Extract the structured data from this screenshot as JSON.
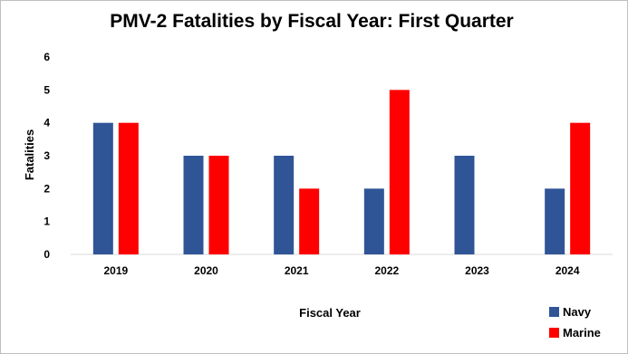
{
  "chart_data": {
    "type": "bar",
    "title": "PMV-2 Fatalities by Fiscal Year: First Quarter",
    "xlabel": "Fiscal Year",
    "ylabel": "Fatalities",
    "categories": [
      "2019",
      "2020",
      "2021",
      "2022",
      "2023",
      "2024"
    ],
    "series": [
      {
        "name": "Navy",
        "values": [
          4,
          3,
          3,
          2,
          3,
          2
        ],
        "color": "#2f5597"
      },
      {
        "name": "Marine",
        "values": [
          4,
          3,
          2,
          5,
          0,
          4
        ],
        "color": "#ff0000"
      }
    ],
    "ylim": [
      0,
      6
    ],
    "yticks": [
      "0",
      "1",
      "2",
      "3",
      "4",
      "5",
      "6"
    ],
    "grid": false,
    "legend_position": "bottom-right"
  }
}
